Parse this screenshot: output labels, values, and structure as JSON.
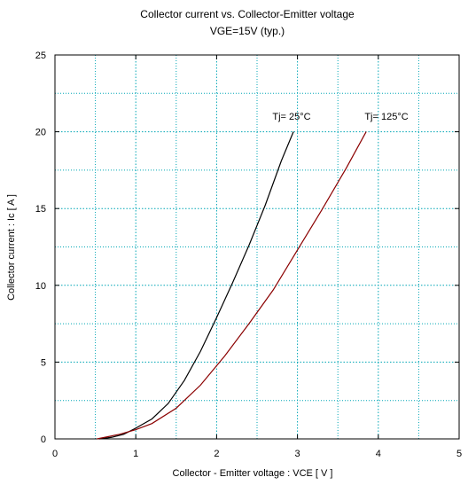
{
  "chart_data": {
    "type": "line",
    "title": "Collector current  vs.  Collector-Emitter voltage",
    "subtitle": "VGE=15V  (typ.)",
    "xlabel": "Collector - Emitter voltage  :  VCE  [ V ]",
    "ylabel": "Collector current  :  Ic  [ A ]",
    "xlim": [
      0,
      5
    ],
    "ylim": [
      0,
      25
    ],
    "xticks": [
      0,
      1,
      2,
      3,
      4,
      5
    ],
    "yticks": [
      0,
      5,
      10,
      15,
      20,
      25
    ],
    "grid": true,
    "series": [
      {
        "name": "Tj= 25°C",
        "color": "#000000",
        "x": [
          0.55,
          0.7,
          0.85,
          1.0,
          1.2,
          1.4,
          1.6,
          1.8,
          2.0,
          2.2,
          2.4,
          2.6,
          2.8,
          2.95
        ],
        "y": [
          0.0,
          0.1,
          0.3,
          0.7,
          1.3,
          2.3,
          3.8,
          5.7,
          7.9,
          10.2,
          12.6,
          15.2,
          18.1,
          20.0
        ]
      },
      {
        "name": "Tj= 125°C",
        "color": "#8b0000",
        "x": [
          0.52,
          0.8,
          1.0,
          1.2,
          1.5,
          1.8,
          2.1,
          2.4,
          2.7,
          3.0,
          3.3,
          3.6,
          3.85
        ],
        "y": [
          0.0,
          0.3,
          0.6,
          1.0,
          2.0,
          3.5,
          5.4,
          7.5,
          9.7,
          12.3,
          14.9,
          17.6,
          20.0
        ]
      }
    ]
  }
}
